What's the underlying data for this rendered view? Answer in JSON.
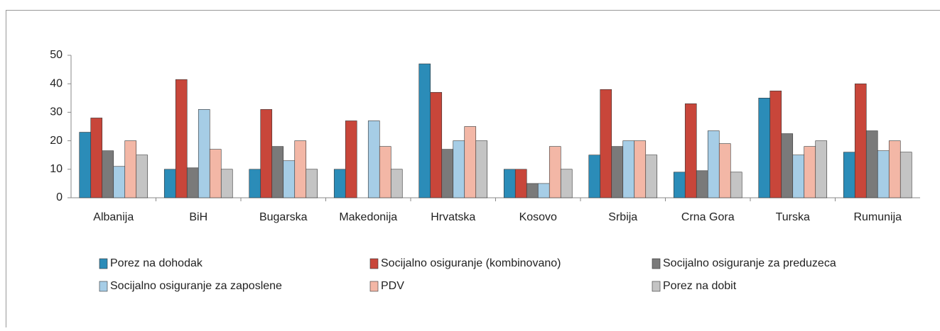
{
  "chart_data": {
    "type": "bar",
    "categories": [
      "Albanija",
      "BiH",
      "Bugarska",
      "Makedonija",
      "Hrvatska",
      "Kosovo",
      "Srbija",
      "Crna Gora",
      "Turska",
      "Rumunija"
    ],
    "series": [
      {
        "name": "Porez na dohodak",
        "color": "#2b8cb8",
        "values": [
          23,
          10,
          10,
          10,
          47,
          10,
          15,
          9,
          35,
          16
        ]
      },
      {
        "name": "Socijalno osiguranje (kombinovano)",
        "color": "#c8463a",
        "values": [
          28,
          41.5,
          31,
          27,
          37,
          10,
          38,
          33,
          37.5,
          40
        ]
      },
      {
        "name": "Socijalno osiguranje za preduzeca",
        "color": "#7a7a7a",
        "values": [
          16.5,
          10.5,
          18,
          0,
          17,
          5,
          18,
          9.5,
          22.5,
          23.5
        ]
      },
      {
        "name": "Socijalno osiguranje za zaposlene",
        "color": "#a6cde6",
        "values": [
          11,
          31,
          13,
          27,
          20,
          5,
          20,
          23.5,
          15,
          16.5
        ]
      },
      {
        "name": "PDV",
        "color": "#f3b7a6",
        "values": [
          20,
          17,
          20,
          18,
          25,
          18,
          20,
          19,
          18,
          20
        ]
      },
      {
        "name": "Porez na dobit",
        "color": "#c4c4c4",
        "values": [
          15,
          10,
          10,
          10,
          20,
          10,
          15,
          9,
          20,
          16
        ]
      }
    ],
    "ylim": [
      0,
      50
    ],
    "yticks": [
      0,
      10,
      20,
      30,
      40,
      50
    ],
    "grid": false
  }
}
